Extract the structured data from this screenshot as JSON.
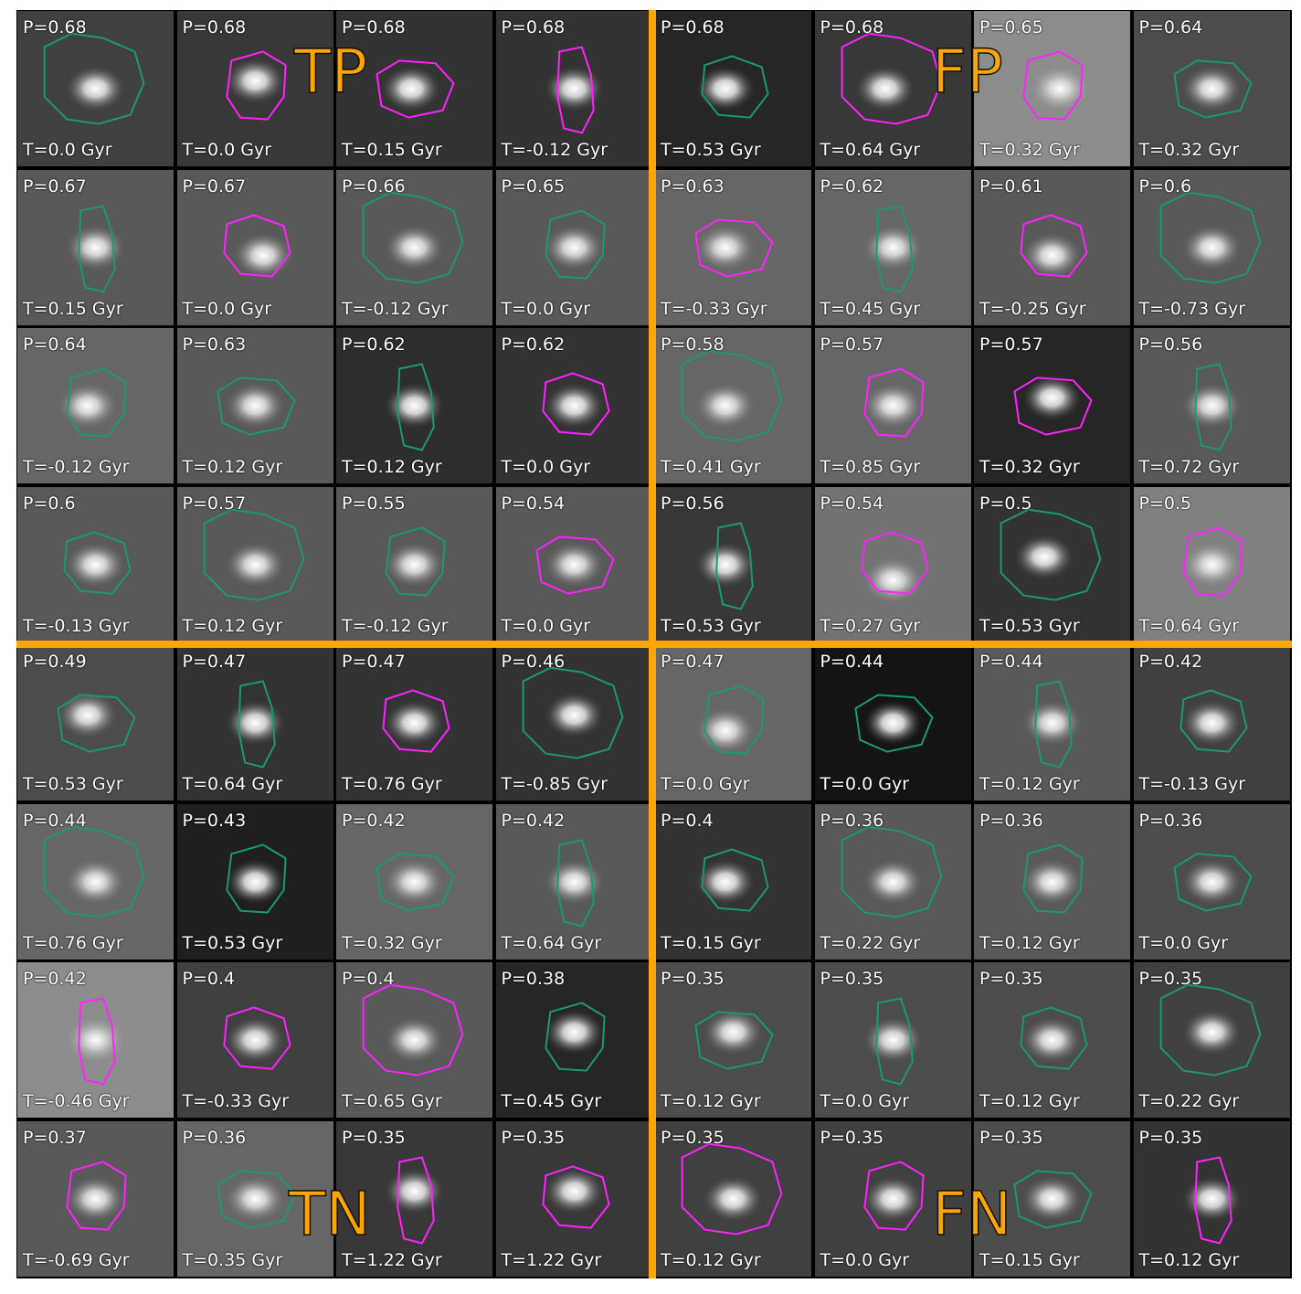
{
  "colors": {
    "divider": "#FFA500",
    "contour_green": "#1a9a70",
    "contour_magenta": "#ff22ff"
  },
  "quadrant_labels": {
    "tp": "TP",
    "fp": "FP",
    "tn": "TN",
    "fn": "FN"
  },
  "rows": [
    [
      {
        "p": "P=0.68",
        "t": "T=0.0 Gyr",
        "c": "g",
        "bg": 0.25,
        "blob": [
          0.5,
          0.5
        ]
      },
      {
        "p": "P=0.68",
        "t": "T=0.0 Gyr",
        "c": "m",
        "bg": 0.22,
        "blob": [
          0.5,
          0.45
        ]
      },
      {
        "p": "P=0.68",
        "t": "T=0.15 Gyr",
        "c": "m",
        "bg": 0.2,
        "blob": [
          0.48,
          0.5
        ]
      },
      {
        "p": "P=0.68",
        "t": "T=-0.12 Gyr",
        "c": "m",
        "bg": 0.2,
        "blob": [
          0.5,
          0.5
        ]
      },
      {
        "p": "P=0.68",
        "t": "T=0.53 Gyr",
        "c": "g",
        "bg": 0.15,
        "blob": [
          0.45,
          0.5
        ]
      },
      {
        "p": "P=0.68",
        "t": "T=0.64 Gyr",
        "c": "m",
        "bg": 0.22,
        "blob": [
          0.45,
          0.5
        ]
      },
      {
        "p": "P=0.65",
        "t": "T=0.32 Gyr",
        "c": "m",
        "bg": 0.55,
        "blob": [
          0.55,
          0.5
        ]
      },
      {
        "p": "P=0.64",
        "t": "T=0.32 Gyr",
        "c": "g",
        "bg": 0.3,
        "blob": [
          0.5,
          0.5
        ]
      }
    ],
    [
      {
        "p": "P=0.67",
        "t": "T=0.15 Gyr",
        "c": "g",
        "bg": 0.35,
        "blob": [
          0.5,
          0.5
        ]
      },
      {
        "p": "P=0.67",
        "t": "T=0.0 Gyr",
        "c": "m",
        "bg": 0.35,
        "blob": [
          0.55,
          0.55
        ]
      },
      {
        "p": "P=0.66",
        "t": "T=-0.12 Gyr",
        "c": "g",
        "bg": 0.35,
        "blob": [
          0.5,
          0.5
        ]
      },
      {
        "p": "P=0.65",
        "t": "T=0.0 Gyr",
        "c": "g",
        "bg": 0.35,
        "blob": [
          0.5,
          0.5
        ]
      },
      {
        "p": "P=0.63",
        "t": "T=-0.33 Gyr",
        "c": "m",
        "bg": 0.4,
        "blob": [
          0.45,
          0.5
        ]
      },
      {
        "p": "P=0.62",
        "t": "T=0.45 Gyr",
        "c": "g",
        "bg": 0.4,
        "blob": [
          0.5,
          0.5
        ]
      },
      {
        "p": "P=0.61",
        "t": "T=-0.25 Gyr",
        "c": "m",
        "bg": 0.35,
        "blob": [
          0.5,
          0.55
        ]
      },
      {
        "p": "P=0.6",
        "t": "T=-0.73 Gyr",
        "c": "g",
        "bg": 0.35,
        "blob": [
          0.5,
          0.5
        ]
      }
    ],
    [
      {
        "p": "P=0.64",
        "t": "T=-0.12 Gyr",
        "c": "g",
        "bg": 0.4,
        "blob": [
          0.45,
          0.5
        ]
      },
      {
        "p": "P=0.63",
        "t": "T=0.12 Gyr",
        "c": "g",
        "bg": 0.35,
        "blob": [
          0.5,
          0.5
        ]
      },
      {
        "p": "P=0.62",
        "t": "T=0.12 Gyr",
        "c": "g",
        "bg": 0.18,
        "blob": [
          0.5,
          0.5
        ]
      },
      {
        "p": "P=0.62",
        "t": "T=0.0 Gyr",
        "c": "m",
        "bg": 0.2,
        "blob": [
          0.5,
          0.5
        ]
      },
      {
        "p": "P=0.58",
        "t": "T=0.41 Gyr",
        "c": "g",
        "bg": 0.4,
        "blob": [
          0.45,
          0.5
        ]
      },
      {
        "p": "P=0.57",
        "t": "T=0.85 Gyr",
        "c": "m",
        "bg": 0.4,
        "blob": [
          0.5,
          0.5
        ]
      },
      {
        "p": "P=0.57",
        "t": "T=0.32 Gyr",
        "c": "m",
        "bg": 0.15,
        "blob": [
          0.5,
          0.45
        ]
      },
      {
        "p": "P=0.56",
        "t": "T=0.72 Gyr",
        "c": "g",
        "bg": 0.35,
        "blob": [
          0.5,
          0.5
        ]
      }
    ],
    [
      {
        "p": "P=0.6",
        "t": "T=-0.13 Gyr",
        "c": "g",
        "bg": 0.35,
        "blob": [
          0.5,
          0.5
        ]
      },
      {
        "p": "P=0.57",
        "t": "T=0.12 Gyr",
        "c": "g",
        "bg": 0.35,
        "blob": [
          0.5,
          0.5
        ]
      },
      {
        "p": "P=0.55",
        "t": "T=-0.12 Gyr",
        "c": "g",
        "bg": 0.35,
        "blob": [
          0.5,
          0.5
        ]
      },
      {
        "p": "P=0.54",
        "t": "T=0.0 Gyr",
        "c": "m",
        "bg": 0.35,
        "blob": [
          0.5,
          0.5
        ]
      },
      {
        "p": "P=0.56",
        "t": "T=0.53 Gyr",
        "c": "g",
        "bg": 0.22,
        "blob": [
          0.45,
          0.5
        ]
      },
      {
        "p": "P=0.54",
        "t": "T=0.27 Gyr",
        "c": "m",
        "bg": 0.45,
        "blob": [
          0.5,
          0.6
        ]
      },
      {
        "p": "P=0.5",
        "t": "T=0.53 Gyr",
        "c": "g",
        "bg": 0.2,
        "blob": [
          0.45,
          0.45
        ]
      },
      {
        "p": "P=0.5",
        "t": "T=0.64 Gyr",
        "c": "m",
        "bg": 0.5,
        "blob": [
          0.5,
          0.5
        ]
      }
    ],
    [
      {
        "p": "P=0.49",
        "t": "T=0.53 Gyr",
        "c": "g",
        "bg": 0.3,
        "blob": [
          0.45,
          0.45
        ]
      },
      {
        "p": "P=0.47",
        "t": "T=0.64 Gyr",
        "c": "g",
        "bg": 0.2,
        "blob": [
          0.5,
          0.5
        ]
      },
      {
        "p": "P=0.47",
        "t": "T=0.76 Gyr",
        "c": "m",
        "bg": 0.2,
        "blob": [
          0.5,
          0.5
        ]
      },
      {
        "p": "P=0.46",
        "t": "T=-0.85 Gyr",
        "c": "g",
        "bg": 0.2,
        "blob": [
          0.5,
          0.45
        ]
      },
      {
        "p": "P=0.47",
        "t": "T=0.0 Gyr",
        "c": "g",
        "bg": 0.4,
        "blob": [
          0.45,
          0.55
        ]
      },
      {
        "p": "P=0.44",
        "t": "T=0.0 Gyr",
        "c": "g",
        "bg": 0.08,
        "blob": [
          0.5,
          0.5
        ]
      },
      {
        "p": "P=0.44",
        "t": "T=0.12 Gyr",
        "c": "g",
        "bg": 0.35,
        "blob": [
          0.5,
          0.5
        ]
      },
      {
        "p": "P=0.42",
        "t": "T=-0.13 Gyr",
        "c": "g",
        "bg": 0.25,
        "blob": [
          0.5,
          0.5
        ]
      }
    ],
    [
      {
        "p": "P=0.44",
        "t": "T=0.76 Gyr",
        "c": "g",
        "bg": 0.4,
        "blob": [
          0.5,
          0.5
        ]
      },
      {
        "p": "P=0.43",
        "t": "T=0.53 Gyr",
        "c": "g",
        "bg": 0.12,
        "blob": [
          0.5,
          0.5
        ]
      },
      {
        "p": "P=0.42",
        "t": "T=0.32 Gyr",
        "c": "g",
        "bg": 0.4,
        "blob": [
          0.5,
          0.5
        ]
      },
      {
        "p": "P=0.42",
        "t": "T=0.64 Gyr",
        "c": "g",
        "bg": 0.35,
        "blob": [
          0.5,
          0.5
        ]
      },
      {
        "p": "P=0.4",
        "t": "T=0.15 Gyr",
        "c": "g",
        "bg": 0.2,
        "blob": [
          0.45,
          0.5
        ]
      },
      {
        "p": "P=0.36",
        "t": "T=0.22 Gyr",
        "c": "g",
        "bg": 0.35,
        "blob": [
          0.5,
          0.5
        ]
      },
      {
        "p": "P=0.36",
        "t": "T=0.12 Gyr",
        "c": "g",
        "bg": 0.35,
        "blob": [
          0.5,
          0.5
        ]
      },
      {
        "p": "P=0.36",
        "t": "T=0.0 Gyr",
        "c": "g",
        "bg": 0.3,
        "blob": [
          0.5,
          0.5
        ]
      }
    ],
    [
      {
        "p": "P=0.42",
        "t": "T=-0.46 Gyr",
        "c": "m",
        "bg": 0.55,
        "blob": [
          0.5,
          0.5
        ]
      },
      {
        "p": "P=0.4",
        "t": "T=-0.33 Gyr",
        "c": "m",
        "bg": 0.25,
        "blob": [
          0.5,
          0.5
        ]
      },
      {
        "p": "P=0.4",
        "t": "T=0.65 Gyr",
        "c": "m",
        "bg": 0.35,
        "blob": [
          0.5,
          0.5
        ]
      },
      {
        "p": "P=0.38",
        "t": "T=0.45 Gyr",
        "c": "g",
        "bg": 0.15,
        "blob": [
          0.5,
          0.45
        ]
      },
      {
        "p": "P=0.35",
        "t": "T=0.12 Gyr",
        "c": "g",
        "bg": 0.3,
        "blob": [
          0.5,
          0.45
        ]
      },
      {
        "p": "P=0.35",
        "t": "T=0.0 Gyr",
        "c": "g",
        "bg": 0.3,
        "blob": [
          0.5,
          0.5
        ]
      },
      {
        "p": "P=0.35",
        "t": "T=0.12 Gyr",
        "c": "g",
        "bg": 0.3,
        "blob": [
          0.5,
          0.5
        ]
      },
      {
        "p": "P=0.35",
        "t": "T=0.22 Gyr",
        "c": "g",
        "bg": 0.25,
        "blob": [
          0.5,
          0.45
        ]
      }
    ],
    [
      {
        "p": "P=0.37",
        "t": "T=-0.69 Gyr",
        "c": "m",
        "bg": 0.35,
        "blob": [
          0.5,
          0.5
        ]
      },
      {
        "p": "P=0.36",
        "t": "T=0.35 Gyr",
        "c": "g",
        "bg": 0.4,
        "blob": [
          0.5,
          0.5
        ]
      },
      {
        "p": "P=0.35",
        "t": "T=1.22 Gyr",
        "c": "m",
        "bg": 0.22,
        "blob": [
          0.5,
          0.45
        ]
      },
      {
        "p": "P=0.35",
        "t": "T=1.22 Gyr",
        "c": "m",
        "bg": 0.22,
        "blob": [
          0.5,
          0.45
        ]
      },
      {
        "p": "P=0.35",
        "t": "T=0.12 Gyr",
        "c": "m",
        "bg": 0.25,
        "blob": [
          0.5,
          0.5
        ]
      },
      {
        "p": "P=0.35",
        "t": "T=0.0 Gyr",
        "c": "m",
        "bg": 0.25,
        "blob": [
          0.5,
          0.5
        ]
      },
      {
        "p": "P=0.35",
        "t": "T=0.15 Gyr",
        "c": "g",
        "bg": 0.3,
        "blob": [
          0.5,
          0.5
        ]
      },
      {
        "p": "P=0.35",
        "t": "T=0.12 Gyr",
        "c": "m",
        "bg": 0.2,
        "blob": [
          0.5,
          0.5
        ]
      }
    ]
  ]
}
